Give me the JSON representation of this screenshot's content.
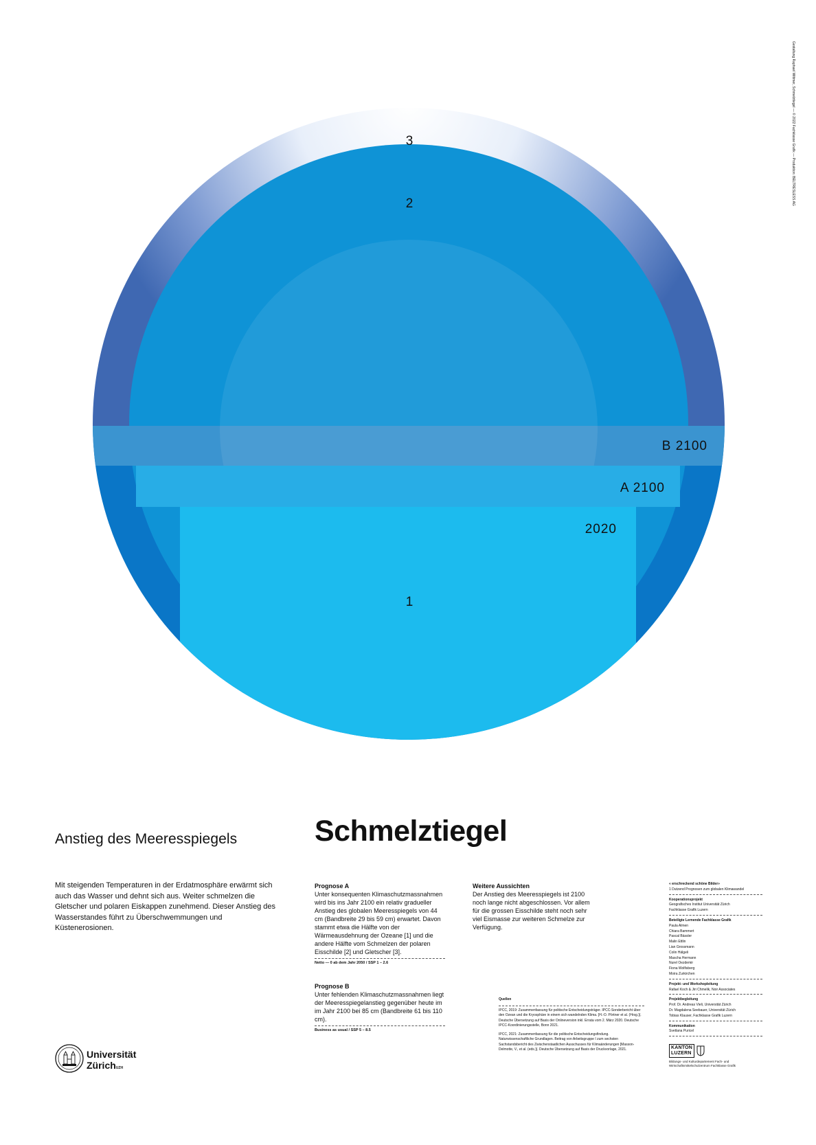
{
  "credit_vertical": "Gestaltung Raphael Wittmer, Schmelztiegel — © 2022 Fachklasse Grafik — Produktion: BELTRESLESS AG",
  "diagram": {
    "labels": {
      "one": "1",
      "two": "2",
      "three": "3",
      "level_2020": "2020",
      "level_a": "A 2100",
      "level_b": "B 2100"
    },
    "colors": {
      "ocean_deep": "#0a76c7",
      "ocean_light": "#1cbbee",
      "ice_blue": "#3f68b2",
      "sun_core": "#e5352b",
      "sun_edge": "#fde71f"
    }
  },
  "text": {
    "subtitle": "Anstieg des Meeresspiegels",
    "title": "Schmelztiegel",
    "intro": "Mit steigenden Temperaturen in der Erdatmosphäre erwärmt sich auch das Wasser und dehnt sich aus. Weiter schmelzen die Gletscher und polaren Eiskappen zunehmend. Dieser Anstieg des Wasserstandes führt zu Überschwemmungen und Küstenerosionen."
  },
  "prognose_a": {
    "heading": "Prognose A",
    "body": "Unter konsequenten Klimaschutzmassnahmen wird bis ins Jahr 2100 ein relativ graduel­ler Anstieg des globalen Meeresspiegels von 44 cm (Bandbreite 29 bis 59 cm) erwar­tet. Davon stammt etwa die Hälfte von der Wärmeausdehnung der Ozeane [1] und die andere Hälfte vom Schmelzen der polaren Eisschilde [2] und Gletscher [3].",
    "note": "Netto — 0 ab dem Jahr 2050 / SSP 1 – 2.6"
  },
  "prognose_b": {
    "heading": "Prognose B",
    "body": "Unter fehlenden Klimaschutzmassnahmen liegt der Meeresspiegelanstieg gegenüber heute im im Jahr 2100 bei 85 cm (Bandbreite 61 bis 110 cm).",
    "note": "Business as usual / SSP 5 – 8.5"
  },
  "aussichten": {
    "heading": "Weitere Aussichten",
    "body": "Der Anstieg des Meeresspiegels ist 2100 noch lange nicht abgeschlossen. Vor allem für die grossen Eisschilde steht noch sehr viel Eismasse zur weiteren Schmelze zur Verfügung."
  },
  "sources": {
    "heading": "Quellen",
    "items": [
      "IPCC, 2019: Zusammenfassung für politische Entscheidungsträger. IPCC-Sonderbericht über den Ozean und die Kryosphäre in einem sich wandelnden Klima. [H.-O. Pörtner et al. (Hrsg.)]. Deutsche Übersetzung auf Basis der Onlineversion inkl. Errata vom 2. März 2020. Deutsche IPCC-Koordinierungsstelle, Bonn 2021.",
      "IPCC, 2021: Zusammenfassung für die politische Entscheidungsfindung. Naturwissenschaftliche Grundlagen. Beitrag von Arbeitsgruppe I zum sechsten Sachstandsbericht des Zwischenstaatlichen Ausschusses für Klimaänderungen [Masson-Delmotte, V., et al. (eds.)]. Deutsche Übersetzung auf Basis der Druckvorlage, 2021."
    ]
  },
  "credits": {
    "series_title": "« erschreckend schöne Bilder»",
    "series_sub": "1 Dutzend Prognosen zum globalen Klimawandel",
    "koop_h": "Kooperationsprojekt",
    "koop_1": "Geografisches Institut Universität Zürich",
    "koop_2": "Fachklasse Grafik Luzern",
    "lernende_h": "Beteiligte Lernende Fachklasse Grafik",
    "students": [
      "Paula Almen",
      "Chiara Bammert",
      "Pascal Bässler",
      "Malin Ettlin",
      "Lian Grossmann",
      "Colin Hälgeli",
      "Mascha Hermann",
      "Nurel Oezdemir",
      "Fiona Wolfisberg",
      "Moira Zurkirchen"
    ],
    "proj_h": "Projekt- und Workshopleitung",
    "proj_1": "Rafael Koch & Jiri Chmelik, Noir Associates",
    "begl_h": "Projektbegleitung",
    "begl": [
      "Prof. Dr. Andreas Vieli, Universität Zürich",
      "Dr. Magdalena Seebauer, Universität Zürich",
      "Tobias Klauser, Fachklasse Grafik Luzern"
    ],
    "komm_h": "Kommunikation",
    "komm_1": "Svetlana Puricel"
  },
  "logos": {
    "uzh_line1": "Universität",
    "uzh_line2": "Zürich",
    "uzh_sup": "UZH",
    "kanton_1": "KANTON",
    "kanton_2": "LUZERN",
    "kanton_small": "Bildungs- und Kulturdepartement Fach- und Wirtschaftsmittelschulzentrum Fachklasse Grafik"
  }
}
